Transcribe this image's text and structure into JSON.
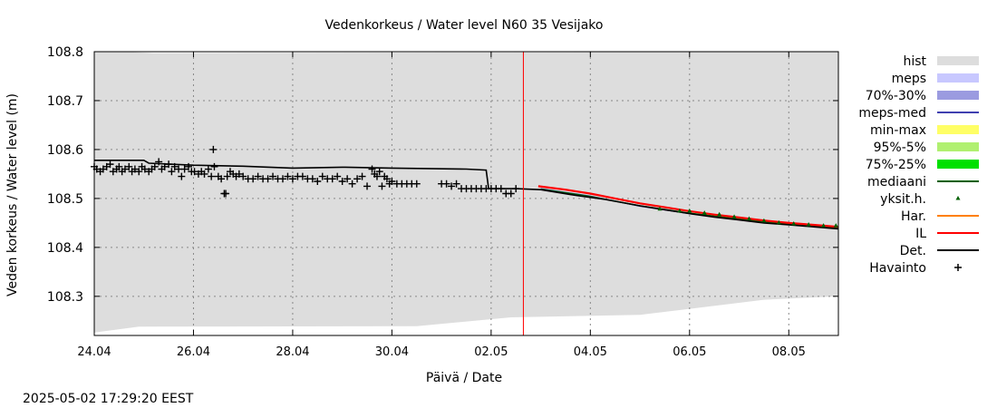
{
  "chart_data": {
    "type": "line",
    "title": "Vedenkorkeus / Water level   N60 35 Vesijako",
    "xlabel": "Päivä / Date",
    "ylabel": "Veden korkeus / Water level (m)",
    "timestamp": "2025-05-02 17:29:20 EEST",
    "x_unit": "days since 24.04",
    "xlim": [
      0,
      15
    ],
    "ylim": [
      108.22,
      108.8
    ],
    "x_ticks": [
      {
        "x": 0,
        "label": "24.04"
      },
      {
        "x": 2,
        "label": "26.04"
      },
      {
        "x": 4,
        "label": "28.04"
      },
      {
        "x": 6,
        "label": "30.04"
      },
      {
        "x": 8,
        "label": "02.05"
      },
      {
        "x": 10,
        "label": "04.05"
      },
      {
        "x": 12,
        "label": "06.05"
      },
      {
        "x": 14,
        "label": "08.05"
      }
    ],
    "y_ticks": [
      {
        "y": 108.3,
        "label": "108.3"
      },
      {
        "y": 108.4,
        "label": "108.4"
      },
      {
        "y": 108.5,
        "label": "108.5"
      },
      {
        "y": 108.6,
        "label": "108.6"
      },
      {
        "y": 108.7,
        "label": "108.7"
      },
      {
        "y": 108.8,
        "label": "108.8"
      }
    ],
    "now_x": 8.65,
    "colors": {
      "hist": "#dddddd",
      "meps": "#c8c8ff",
      "p70_30": "#9b9be0",
      "meps_med": "#4040b0",
      "min_max": "#ffff66",
      "p95_5": "#b0f070",
      "p75_25": "#00e000",
      "mediaani": "#006000",
      "yksit": "#006000",
      "har": "#ff8000",
      "il": "#ff0000",
      "det": "#000000",
      "havainto": "#000000",
      "now_line": "#ff0000",
      "grid": "#888888"
    },
    "legend": [
      {
        "key": "hist",
        "label": "hist",
        "style": "box"
      },
      {
        "key": "meps",
        "label": "meps",
        "style": "box"
      },
      {
        "key": "p70_30",
        "label": "70%-30%",
        "style": "box"
      },
      {
        "key": "meps_med",
        "label": "meps-med",
        "style": "line"
      },
      {
        "key": "min_max",
        "label": "min-max",
        "style": "box"
      },
      {
        "key": "p95_5",
        "label": "95%-5%",
        "style": "box"
      },
      {
        "key": "p75_25",
        "label": "75%-25%",
        "style": "box"
      },
      {
        "key": "mediaani",
        "label": "mediaani",
        "style": "line"
      },
      {
        "key": "yksit",
        "label": "yksit.h.",
        "style": "dot"
      },
      {
        "key": "har",
        "label": "Har.",
        "style": "line"
      },
      {
        "key": "il",
        "label": "IL",
        "style": "line"
      },
      {
        "key": "det",
        "label": "Det.",
        "style": "line"
      },
      {
        "key": "havainto",
        "label": "Havainto",
        "style": "plus"
      }
    ],
    "series": {
      "hist_upper": {
        "x": [
          0,
          0.6,
          1.2,
          15
        ],
        "y": [
          108.8,
          108.8,
          108.797,
          108.8
        ]
      },
      "hist_lower": {
        "x": [
          0,
          0.9,
          6.5,
          8.4,
          11,
          13.5,
          15
        ],
        "y": [
          108.226,
          108.238,
          108.239,
          108.257,
          108.262,
          108.293,
          108.3
        ]
      },
      "det": {
        "x": [
          0,
          1.0,
          1.1,
          2.0,
          3.0,
          4.0,
          5.0,
          6.0,
          7.5,
          7.9,
          7.95,
          8.5,
          9.0,
          9.6,
          10.3,
          11.0,
          11.5,
          12.0,
          12.5,
          13.0,
          13.5,
          14.0,
          14.5,
          15.0
        ],
        "y": [
          108.578,
          108.578,
          108.572,
          108.568,
          108.566,
          108.562,
          108.564,
          108.562,
          108.56,
          108.558,
          108.52,
          108.52,
          108.518,
          108.508,
          108.498,
          108.485,
          108.477,
          108.469,
          108.462,
          108.456,
          108.45,
          108.446,
          108.442,
          108.438
        ]
      },
      "il": {
        "x": [
          8.95,
          9.5,
          10.0,
          10.5,
          11.0,
          11.5,
          12.0,
          12.5,
          13.0,
          13.5,
          14.0,
          14.5,
          15.0
        ],
        "y": [
          108.525,
          108.518,
          108.51,
          108.5,
          108.49,
          108.482,
          108.474,
          108.467,
          108.461,
          108.455,
          108.45,
          108.446,
          108.442
        ]
      },
      "mediaani": {
        "x": [
          9.0,
          10.0,
          11.0,
          12.0,
          13.0,
          14.0,
          15.0
        ],
        "y": [
          108.519,
          108.504,
          108.485,
          108.47,
          108.458,
          108.448,
          108.44
        ]
      },
      "meps_med": {
        "x": [
          9.0,
          10.0,
          11.0,
          12.0,
          13.0,
          14.0,
          15.0
        ],
        "y": [
          108.52,
          108.505,
          108.484,
          108.469,
          108.457,
          108.447,
          108.439
        ]
      },
      "yksit": {
        "x": [
          11.4,
          11.8,
          12.0,
          12.3,
          12.6,
          12.9,
          13.2,
          13.5,
          13.8,
          14.1,
          14.4,
          14.7,
          14.95
        ],
        "y": [
          108.478,
          108.474,
          108.474,
          108.47,
          108.467,
          108.462,
          108.458,
          108.454,
          108.45,
          108.448,
          108.446,
          108.444,
          108.444
        ]
      },
      "havainto": {
        "x": [
          0.0,
          0.05,
          0.12,
          0.18,
          0.25,
          0.32,
          0.38,
          0.45,
          0.5,
          0.56,
          0.62,
          0.7,
          0.76,
          0.82,
          0.9,
          0.96,
          1.02,
          1.1,
          1.16,
          1.22,
          1.3,
          1.36,
          1.42,
          1.5,
          1.56,
          1.62,
          1.7,
          1.76,
          1.82,
          1.9,
          1.96,
          2.02,
          2.1,
          2.16,
          2.22,
          2.3,
          2.36,
          2.42,
          2.5,
          2.56,
          2.62,
          2.68,
          2.74,
          2.8,
          2.86,
          2.92,
          3.0,
          3.1,
          3.2,
          3.3,
          3.4,
          3.5,
          3.6,
          3.7,
          3.8,
          3.9,
          4.0,
          4.1,
          4.2,
          4.3,
          4.4,
          4.5,
          4.6,
          4.7,
          4.8,
          4.9,
          5.0,
          5.1,
          5.2,
          5.3,
          5.4,
          5.5,
          5.6,
          5.65,
          5.7,
          5.75,
          5.8,
          5.85,
          5.9,
          5.95,
          6.0,
          6.1,
          6.2,
          6.3,
          6.4,
          6.5,
          7.0,
          7.1,
          7.2,
          7.3,
          7.4,
          7.5,
          7.6,
          7.7,
          7.8,
          7.9,
          8.0,
          8.1,
          8.2,
          8.3,
          8.4,
          8.5
        ],
        "y": [
          108.565,
          108.56,
          108.555,
          108.56,
          108.565,
          108.57,
          108.555,
          108.56,
          108.565,
          108.555,
          108.56,
          108.565,
          108.555,
          108.56,
          108.555,
          108.565,
          108.56,
          108.555,
          108.56,
          108.565,
          108.575,
          108.56,
          108.565,
          108.57,
          108.555,
          108.565,
          108.56,
          108.545,
          108.56,
          108.565,
          108.555,
          108.555,
          108.55,
          108.555,
          108.55,
          108.56,
          108.545,
          108.565,
          108.545,
          108.54,
          108.51,
          108.545,
          108.555,
          108.55,
          108.545,
          108.55,
          108.545,
          108.54,
          108.54,
          108.545,
          108.54,
          108.54,
          108.545,
          108.54,
          108.54,
          108.545,
          108.54,
          108.545,
          108.545,
          108.54,
          108.54,
          108.535,
          108.545,
          108.54,
          108.54,
          108.545,
          108.535,
          108.54,
          108.53,
          108.54,
          108.545,
          108.525,
          108.56,
          108.55,
          108.545,
          108.555,
          108.525,
          108.545,
          108.54,
          108.53,
          108.535,
          108.53,
          108.53,
          108.53,
          108.53,
          108.53,
          108.53,
          108.53,
          108.525,
          108.53,
          108.52,
          108.52,
          108.52,
          108.52,
          108.52,
          108.52,
          108.52,
          108.52,
          108.52,
          108.51,
          108.51,
          108.52
        ]
      },
      "outliers": {
        "x": [
          2.4,
          2.65
        ],
        "y": [
          108.6,
          108.51
        ]
      }
    }
  }
}
